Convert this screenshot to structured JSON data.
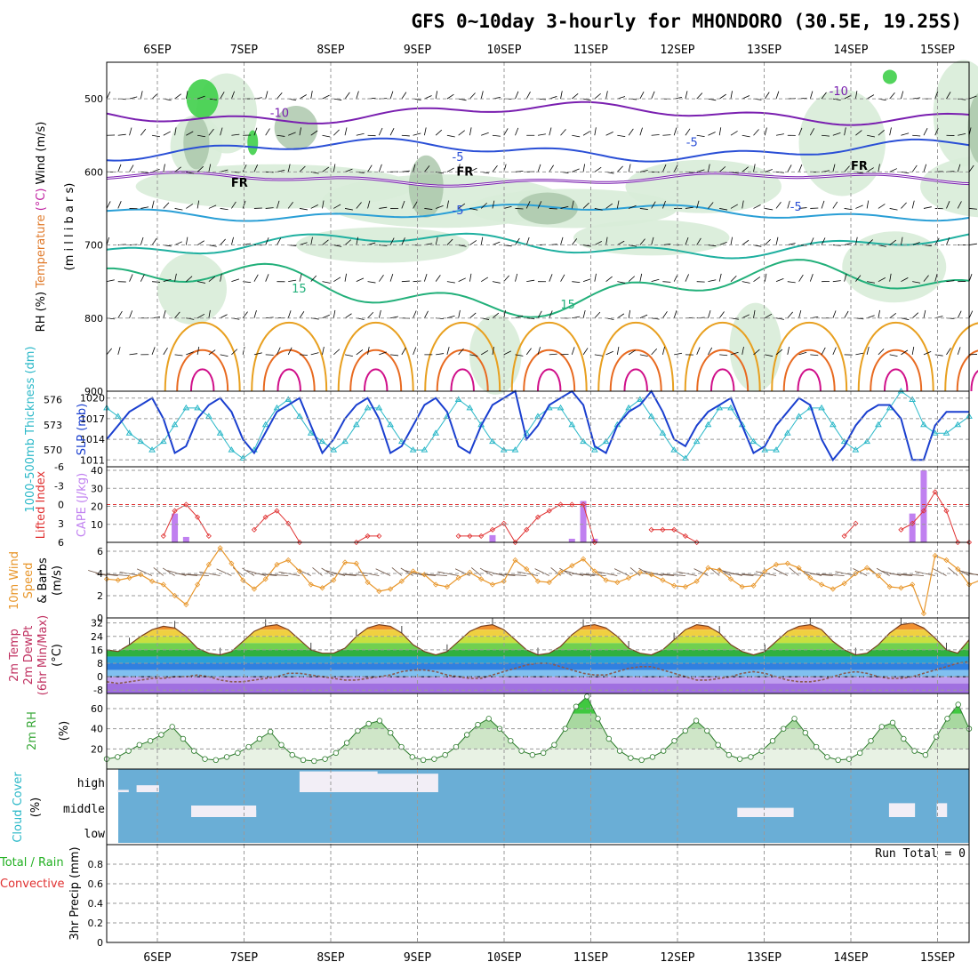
{
  "title": "GFS 0~10day 3-hourly for MHONDORO (30.5E, 19.25S)",
  "days": [
    "6SEP",
    "7SEP",
    "8SEP",
    "9SEP",
    "10SEP",
    "11SEP",
    "12SEP",
    "13SEP",
    "14SEP",
    "15SEP"
  ],
  "colors": {
    "temp_contour_cold": "#7a1fb0",
    "temp_contour_cool": "#2a4fd6",
    "temp_contour_mid": "#2a9fd6",
    "temp_contour_warm": "#1fb0a0",
    "temp_contour_green": "#22b07a",
    "temp_contour_hot": "#e8a020",
    "temp_contour_hotter": "#e86a20",
    "temp_contour_hottest": "#d0108a",
    "rh_shade": "#2fc23a",
    "slp_line": "#1a3fcf",
    "thickness_line": "#2bb8c8",
    "lifted_index": "#e03030",
    "cape_bar": "#c080f0",
    "wind_speed": "#e8962a",
    "cloud_fill": "#6aaed6",
    "rh2m_fill": "#3aa83a"
  },
  "chart_data": [
    {
      "type": "heatmap",
      "name": "upper_air_cross_section",
      "ylabel_parts": [
        "RH (%)",
        "Temperature",
        "(°C)",
        "Wind",
        "(m/s)"
      ],
      "ylabel_units": "(m i l l i b a r s)",
      "y_ticks": [
        500,
        600,
        700,
        800,
        900
      ],
      "ylim": [
        450,
        900
      ],
      "contour_labels": [
        {
          "text": "-10",
          "x": 1.3,
          "y": 525
        },
        {
          "text": "-10",
          "x": 7.75,
          "y": 495
        },
        {
          "text": "-5",
          "x": 3.4,
          "y": 585
        },
        {
          "text": "-5",
          "x": 6.1,
          "y": 565
        },
        {
          "text": "-5",
          "x": 3.4,
          "y": 658
        },
        {
          "text": "-5",
          "x": 7.3,
          "y": 653
        },
        {
          "text": "FR",
          "x": 0.85,
          "y": 620
        },
        {
          "text": "FR",
          "x": 3.45,
          "y": 605
        },
        {
          "text": "FR",
          "x": 8.0,
          "y": 597
        },
        {
          "text": "15",
          "x": 1.55,
          "y": 765
        },
        {
          "text": "15",
          "x": 4.65,
          "y": 787
        }
      ],
      "isotherms": [
        {
          "label": "-10",
          "color_key": "temp_contour_cold",
          "base": 520,
          "amp": 10
        },
        {
          "label": "-5",
          "color_key": "temp_contour_cool",
          "base": 570,
          "amp": 10
        },
        {
          "label": "FR",
          "color_key": "temp_contour_cold",
          "base": 610,
          "amp": 6
        },
        {
          "label": "-5b",
          "color_key": "temp_contour_mid",
          "base": 655,
          "amp": 8
        },
        {
          "label": "10",
          "color_key": "temp_contour_warm",
          "base": 700,
          "amp": 12
        },
        {
          "label": "15",
          "color_key": "temp_contour_green",
          "base": 760,
          "amp": 25
        }
      ]
    },
    {
      "type": "line",
      "name": "thickness_slp",
      "ylabel_left": "1000-500mb Thickness (dm)",
      "ylabel_right": "SLP (mb)",
      "thickness_ticks": [
        570,
        573,
        576
      ],
      "slp_ticks": [
        1011,
        1014,
        1017,
        1020
      ],
      "thickness_ylim": [
        568,
        577
      ],
      "slp_ylim": [
        1010,
        1021
      ],
      "slp": [
        1014,
        1016,
        1018,
        1019,
        1020,
        1017,
        1012,
        1013,
        1017,
        1019,
        1020,
        1018,
        1014,
        1012,
        1015,
        1018,
        1019,
        1020,
        1016,
        1012,
        1014,
        1017,
        1019,
        1020,
        1017,
        1012,
        1013,
        1016,
        1019,
        1020,
        1018,
        1013,
        1012,
        1016,
        1019,
        1020,
        1021,
        1014,
        1016,
        1019,
        1020,
        1021,
        1019,
        1013,
        1012,
        1016,
        1018,
        1019,
        1021,
        1018,
        1014,
        1013,
        1016,
        1018,
        1019,
        1020,
        1016,
        1012,
        1013,
        1016,
        1018,
        1020,
        1019,
        1014,
        1011,
        1013,
        1016,
        1018,
        1019,
        1019,
        1017,
        1011,
        1011,
        1016,
        1018,
        1018,
        1018
      ],
      "thickness": [
        575,
        574,
        572,
        571,
        570,
        571,
        573,
        575,
        575,
        574,
        572,
        570,
        569,
        570,
        573,
        575,
        576,
        574,
        572,
        571,
        570,
        571,
        573,
        575,
        575,
        573,
        571,
        570,
        570,
        572,
        574,
        576,
        575,
        573,
        571,
        570,
        570,
        572,
        574,
        575,
        575,
        573,
        571,
        570,
        571,
        573,
        575,
        576,
        574,
        572,
        570,
        569,
        571,
        573,
        575,
        575,
        573,
        571,
        570,
        570,
        572,
        574,
        575,
        575,
        573,
        571,
        570,
        571,
        573,
        575,
        577,
        576,
        573,
        572,
        572,
        573,
        574
      ]
    },
    {
      "type": "bar",
      "name": "lifted_index_cape",
      "ylabel_left": "Lifted Index",
      "ylabel_right": "CAPE (J/kg)",
      "li_ticks": [
        "-6",
        "-3",
        "0",
        "3",
        "6"
      ],
      "cape_ticks": [
        10,
        20,
        30,
        40
      ],
      "cape_ylim": [
        0,
        42
      ],
      "lifted_index": [
        null,
        null,
        null,
        null,
        null,
        5,
        1,
        0,
        2,
        5,
        null,
        null,
        null,
        4,
        2,
        1,
        3,
        6,
        null,
        null,
        null,
        null,
        6,
        5,
        5,
        null,
        null,
        null,
        null,
        null,
        null,
        5,
        5,
        5,
        4,
        3,
        6,
        4,
        2,
        1,
        0,
        0,
        0,
        6,
        null,
        null,
        null,
        null,
        4,
        4,
        4,
        5,
        6,
        null,
        null,
        null,
        null,
        null,
        null,
        null,
        null,
        null,
        null,
        null,
        null,
        5,
        3,
        null,
        null,
        null,
        4,
        3,
        1,
        -2,
        1,
        6,
        6
      ],
      "cape": [
        0,
        0,
        0,
        0,
        0,
        0,
        16,
        3,
        0,
        0,
        0,
        0,
        0,
        0,
        0,
        0,
        0,
        0,
        0,
        0,
        0,
        0,
        0,
        0,
        0,
        0,
        0,
        0,
        0,
        0,
        0,
        0,
        0,
        0,
        4,
        0,
        0,
        0,
        0,
        0,
        0,
        2,
        23,
        2,
        0,
        0,
        0,
        0,
        0,
        0,
        0,
        0,
        0,
        0,
        0,
        0,
        0,
        0,
        0,
        0,
        0,
        0,
        0,
        0,
        0,
        0,
        0,
        0,
        0,
        0,
        0,
        16,
        40,
        0,
        0,
        0,
        0
      ]
    },
    {
      "type": "line",
      "name": "wind_10m",
      "ylabel": "10m Wind Speed & Barbs (m/s)",
      "ylabel_parts": [
        "10m Wind",
        "Speed",
        "& Barbs",
        "(m/s)"
      ],
      "y_ticks": [
        0,
        2,
        4,
        6
      ],
      "ylim": [
        0,
        6.8
      ],
      "speed": [
        3.5,
        3.4,
        3.6,
        3.9,
        3.3,
        3.0,
        2.0,
        1.2,
        3.0,
        4.8,
        6.3,
        4.9,
        3.4,
        2.6,
        3.5,
        4.8,
        5.2,
        4.2,
        3.0,
        2.7,
        3.4,
        5.0,
        4.9,
        3.2,
        2.4,
        2.6,
        3.3,
        4.2,
        3.9,
        3.0,
        2.8,
        3.6,
        4.1,
        3.5,
        3.0,
        3.3,
        5.2,
        4.4,
        3.3,
        3.2,
        4.1,
        4.7,
        5.3,
        4.2,
        3.4,
        3.2,
        3.6,
        4.1,
        3.9,
        3.4,
        2.9,
        2.8,
        3.3,
        4.5,
        4.3,
        3.5,
        2.8,
        2.9,
        4.2,
        4.8,
        4.9,
        4.5,
        3.6,
        3.0,
        2.6,
        3.1,
        4.0,
        4.5,
        3.8,
        2.8,
        2.7,
        3.0,
        0.4,
        5.6,
        5.2,
        4.4,
        3.0,
        3.4,
        3.6
      ]
    },
    {
      "type": "area",
      "name": "temp_dewpoint",
      "ylabel_parts": [
        "2m Temp",
        "2m DewPt",
        "(6hr Min/Max)",
        "(°C)"
      ],
      "y_ticks": [
        -8,
        0,
        8,
        16,
        24,
        32
      ],
      "ylim": [
        -10,
        35
      ],
      "temp": [
        16,
        15,
        19,
        24,
        28,
        30,
        29,
        24,
        17,
        14,
        13,
        15,
        21,
        27,
        30,
        31,
        28,
        22,
        16,
        14,
        14,
        17,
        24,
        29,
        31,
        30,
        26,
        19,
        15,
        13,
        15,
        21,
        27,
        30,
        31,
        28,
        22,
        16,
        13,
        14,
        18,
        25,
        30,
        31,
        29,
        24,
        17,
        14,
        13,
        16,
        22,
        28,
        31,
        30,
        26,
        19,
        15,
        13,
        15,
        21,
        27,
        30,
        31,
        28,
        21,
        16,
        13,
        14,
        19,
        26,
        31,
        32,
        29,
        23,
        16,
        14,
        22
      ],
      "dewpoint": [
        -3,
        -4,
        -3,
        -2,
        -1,
        -1,
        0,
        0,
        1,
        0,
        -2,
        -3,
        -3,
        -2,
        -1,
        0,
        2,
        2,
        1,
        0,
        -1,
        -2,
        -2,
        -1,
        0,
        1,
        3,
        4,
        4,
        3,
        1,
        0,
        -1,
        -1,
        1,
        3,
        5,
        7,
        8,
        8,
        6,
        4,
        2,
        1,
        1,
        3,
        5,
        6,
        6,
        4,
        2,
        0,
        -2,
        -2,
        -1,
        0,
        2,
        3,
        2,
        0,
        -2,
        -3,
        -3,
        -2,
        0,
        2,
        3,
        2,
        0,
        -1,
        -1,
        0,
        2,
        4,
        6,
        8,
        9
      ]
    },
    {
      "type": "area",
      "name": "rh_2m",
      "ylabel_parts": [
        "2m RH",
        "(%)"
      ],
      "y_ticks": [
        20,
        40,
        60
      ],
      "ylim": [
        0,
        75
      ],
      "rh": [
        10,
        12,
        18,
        24,
        28,
        34,
        42,
        30,
        18,
        10,
        9,
        12,
        16,
        22,
        30,
        37,
        24,
        14,
        9,
        8,
        10,
        16,
        26,
        38,
        45,
        48,
        36,
        22,
        12,
        9,
        10,
        14,
        22,
        34,
        44,
        50,
        40,
        28,
        18,
        14,
        16,
        24,
        40,
        62,
        72,
        50,
        30,
        18,
        11,
        9,
        12,
        18,
        28,
        38,
        48,
        38,
        24,
        14,
        10,
        12,
        18,
        28,
        40,
        50,
        36,
        22,
        12,
        9,
        10,
        16,
        28,
        42,
        46,
        30,
        18,
        14,
        32,
        50,
        64,
        40
      ]
    },
    {
      "type": "heatmap",
      "name": "cloud_cover",
      "ylabel_parts": [
        "Cloud Cover",
        "(%)"
      ],
      "levels": [
        "high",
        "middle",
        "low"
      ],
      "clear_segments": [
        {
          "level": "high",
          "from": 0.0,
          "to": 0.13,
          "cover": 0.1
        },
        {
          "level": "high",
          "from": 0.22,
          "to": 0.48,
          "cover": 0.3
        },
        {
          "level": "middle",
          "from": 0.85,
          "to": 1.6,
          "cover": 0.5
        },
        {
          "level": "middle",
          "from": 1.2,
          "to": 1.6,
          "cover": 0.3
        },
        {
          "level": "high",
          "from": 2.1,
          "to": 3.0,
          "cover": 0.9
        },
        {
          "level": "high",
          "from": 2.8,
          "to": 3.7,
          "cover": 0.8
        },
        {
          "level": "middle",
          "from": 7.15,
          "to": 7.8,
          "cover": 0.4
        },
        {
          "level": "middle",
          "from": 8.9,
          "to": 9.2,
          "cover": 0.6
        },
        {
          "level": "middle",
          "from": 9.45,
          "to": 9.57,
          "cover": 0.6
        }
      ]
    },
    {
      "type": "bar",
      "name": "precip_3hr",
      "ylabel_parts": [
        "Total / Rain",
        "Convective",
        "3hr Precip (mm)"
      ],
      "y_ticks": [
        0,
        0.2,
        0.4,
        0.6,
        0.8
      ],
      "ylim": [
        0,
        1.0
      ],
      "run_total_label": "Run Total = 0",
      "values": []
    }
  ]
}
